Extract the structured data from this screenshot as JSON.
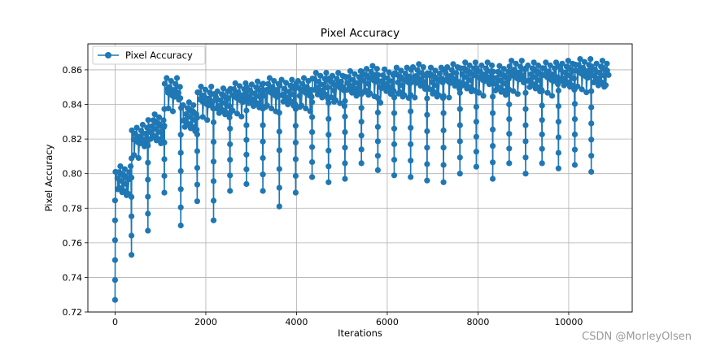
{
  "chart_data": {
    "type": "line",
    "title": "Pixel Accuracy",
    "xlabel": "Iterations",
    "ylabel": "Pixel Accuracy",
    "xlim": [
      -600,
      11400
    ],
    "ylim": [
      0.72,
      0.875
    ],
    "xticks": [
      0,
      2000,
      4000,
      6000,
      8000,
      10000
    ],
    "yticks": [
      0.72,
      0.74,
      0.76,
      0.78,
      0.8,
      0.82,
      0.84,
      0.86
    ],
    "grid": true,
    "legend": {
      "placement": "top-left",
      "entries": [
        "Pixel Accuracy"
      ]
    },
    "color": "#1f77b4",
    "marker": "circle",
    "epoch_length": 362,
    "steps_per_epoch": 10,
    "epochs": [
      {
        "x0": 0,
        "dip": 0.727,
        "hi": 0.806
      },
      {
        "x0": 362,
        "dip": 0.753,
        "hi": 0.83
      },
      {
        "x0": 724,
        "dip": 0.767,
        "hi": 0.836
      },
      {
        "x0": 1086,
        "dip": 0.789,
        "hi": 0.857
      },
      {
        "x0": 1448,
        "dip": 0.77,
        "hi": 0.843
      },
      {
        "x0": 1810,
        "dip": 0.784,
        "hi": 0.852
      },
      {
        "x0": 2172,
        "dip": 0.773,
        "hi": 0.851
      },
      {
        "x0": 2534,
        "dip": 0.79,
        "hi": 0.854
      },
      {
        "x0": 2896,
        "dip": 0.794,
        "hi": 0.855
      },
      {
        "x0": 3258,
        "dip": 0.79,
        "hi": 0.857
      },
      {
        "x0": 3620,
        "dip": 0.781,
        "hi": 0.856
      },
      {
        "x0": 3982,
        "dip": 0.789,
        "hi": 0.857
      },
      {
        "x0": 4344,
        "dip": 0.798,
        "hi": 0.86
      },
      {
        "x0": 4706,
        "dip": 0.795,
        "hi": 0.86
      },
      {
        "x0": 5068,
        "dip": 0.797,
        "hi": 0.861
      },
      {
        "x0": 5430,
        "dip": 0.806,
        "hi": 0.864
      },
      {
        "x0": 5792,
        "dip": 0.802,
        "hi": 0.862
      },
      {
        "x0": 6154,
        "dip": 0.799,
        "hi": 0.863
      },
      {
        "x0": 6516,
        "dip": 0.798,
        "hi": 0.865
      },
      {
        "x0": 6878,
        "dip": 0.796,
        "hi": 0.863
      },
      {
        "x0": 7240,
        "dip": 0.795,
        "hi": 0.865
      },
      {
        "x0": 7602,
        "dip": 0.8,
        "hi": 0.866
      },
      {
        "x0": 7964,
        "dip": 0.804,
        "hi": 0.866
      },
      {
        "x0": 8326,
        "dip": 0.797,
        "hi": 0.864
      },
      {
        "x0": 8688,
        "dip": 0.806,
        "hi": 0.867
      },
      {
        "x0": 9050,
        "dip": 0.8,
        "hi": 0.866
      },
      {
        "x0": 9412,
        "dip": 0.806,
        "hi": 0.866
      },
      {
        "x0": 9774,
        "dip": 0.803,
        "hi": 0.867
      },
      {
        "x0": 10136,
        "dip": 0.805,
        "hi": 0.868
      },
      {
        "x0": 10498,
        "dip": 0.801,
        "hi": 0.867
      }
    ],
    "final_point": [
      10880,
      0.857
    ]
  },
  "watermark": "CSDN @MorleyOlsen"
}
